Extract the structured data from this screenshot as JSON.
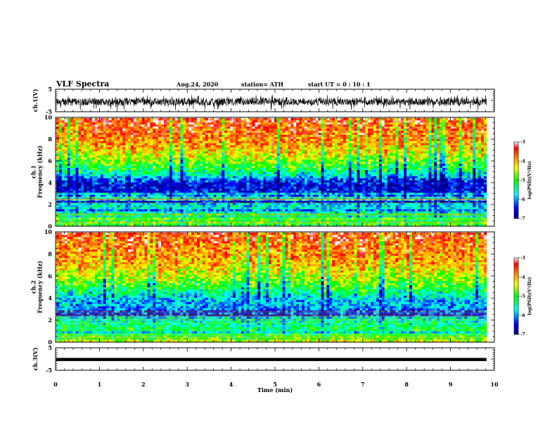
{
  "header": {
    "title": "VLF Spectra",
    "date": "Aug.24, 2020",
    "station": "station= ATH",
    "start_ut": "start  UT  =   0  : 10 : 1"
  },
  "chart_data": [
    {
      "type": "line",
      "name": "ch1-waveform",
      "ylabel": "ch.1(V)",
      "ylim": [
        -5,
        5
      ],
      "yticks": [
        "5",
        "-5"
      ],
      "xlim": [
        0,
        10
      ],
      "data_extent_min": 9.82,
      "x": [
        0,
        0.5,
        1,
        1.5,
        2,
        2.5,
        3,
        3.5,
        4,
        4.5,
        5,
        5.5,
        6,
        6.5,
        7,
        7.5,
        8,
        8.5,
        9,
        9.5,
        9.82
      ],
      "envelope_min": [
        -2.5,
        -2.3,
        -2.6,
        -2.4,
        -2.2,
        -2.6,
        -2.4,
        -2.7,
        -2.5,
        -2.2,
        -2.6,
        -2.3,
        -2.5,
        -2.4,
        -2.2,
        -2.5,
        -2.3,
        -2.4,
        -2.6,
        -2.3,
        -2.4
      ],
      "envelope_max": [
        1.2,
        1.4,
        1.0,
        1.5,
        1.3,
        1.1,
        1.6,
        1.2,
        1.4,
        1.3,
        1.5,
        1.0,
        1.3,
        1.4,
        1.2,
        1.5,
        1.1,
        1.3,
        1.4,
        1.2,
        1.3
      ],
      "color": "#000000"
    },
    {
      "type": "heatmap",
      "name": "ch1-spectrogram",
      "ylabel": "ch.1\nFrequency  (kHz)",
      "yticks": [
        "0",
        "2",
        "4",
        "6",
        "8",
        "10"
      ],
      "ylim": [
        0,
        10
      ],
      "xlim": [
        0,
        10
      ],
      "data_extent_min": 9.82,
      "freq_khz": [
        0.25,
        0.75,
        1.25,
        1.75,
        2.25,
        2.75,
        3.25,
        3.75,
        4.25,
        4.75,
        5.25,
        5.75,
        6.25,
        6.75,
        7.25,
        7.75,
        8.25,
        8.75,
        9.25,
        9.75
      ],
      "mean_log_psd": [
        -4.9,
        -5.4,
        -5.6,
        -5.7,
        -5.9,
        -6.4,
        -6.5,
        -6.6,
        -6.3,
        -5.6,
        -5.2,
        -4.9,
        -4.6,
        -4.3,
        -4.1,
        -3.9,
        -3.8,
        -3.7,
        -3.6,
        -3.5
      ],
      "colorbar": {
        "label": "log(PSD)(V²/Hz)",
        "ticks": [
          "-3",
          "-4",
          "-5",
          "-6",
          "-7"
        ],
        "range": [
          -7,
          -3
        ]
      }
    },
    {
      "type": "heatmap",
      "name": "ch2-spectrogram",
      "ylabel": "ch.2\nFrequency  (kHz)",
      "yticks": [
        "0",
        "2",
        "4",
        "6",
        "8",
        "10"
      ],
      "ylim": [
        0,
        10
      ],
      "xlim": [
        0,
        10
      ],
      "data_extent_min": 9.82,
      "freq_khz": [
        0.25,
        0.75,
        1.25,
        1.75,
        2.25,
        2.75,
        3.25,
        3.75,
        4.25,
        4.75,
        5.25,
        5.75,
        6.25,
        6.75,
        7.25,
        7.75,
        8.25,
        8.75,
        9.25,
        9.75
      ],
      "mean_log_psd": [
        -4.9,
        -5.1,
        -5.2,
        -5.4,
        -5.7,
        -6.3,
        -5.8,
        -5.9,
        -5.6,
        -5.2,
        -4.9,
        -4.6,
        -4.4,
        -4.2,
        -4.0,
        -3.9,
        -3.8,
        -3.7,
        -3.6,
        -3.5
      ],
      "colorbar": {
        "label": "log(PSD)(V²/Hz)",
        "ticks": [
          "-3",
          "-4",
          "-5",
          "-6",
          "-7"
        ],
        "range": [
          -7,
          -3
        ]
      }
    },
    {
      "type": "line",
      "name": "ch3-waveform",
      "ylabel": "ch.3(V)",
      "ylim": [
        -5,
        5
      ],
      "yticks": [
        "5",
        "-5"
      ],
      "xlim": [
        0,
        10
      ],
      "data_extent_min": 9.82,
      "x": [
        0,
        9.82
      ],
      "envelope_min": [
        -0.9,
        -0.9
      ],
      "envelope_max": [
        0.5,
        0.5
      ],
      "color": "#000000"
    }
  ],
  "xaxis": {
    "label": "Time  (min)",
    "ticks": [
      "0",
      "1",
      "2",
      "3",
      "4",
      "5",
      "6",
      "7",
      "8",
      "9",
      "10"
    ],
    "range": [
      0,
      10
    ]
  },
  "colormap_stops": [
    "#000080",
    "#0000ff",
    "#00ffff",
    "#00ff00",
    "#ffff00",
    "#ff8000",
    "#ff0000",
    "#ffffff"
  ]
}
